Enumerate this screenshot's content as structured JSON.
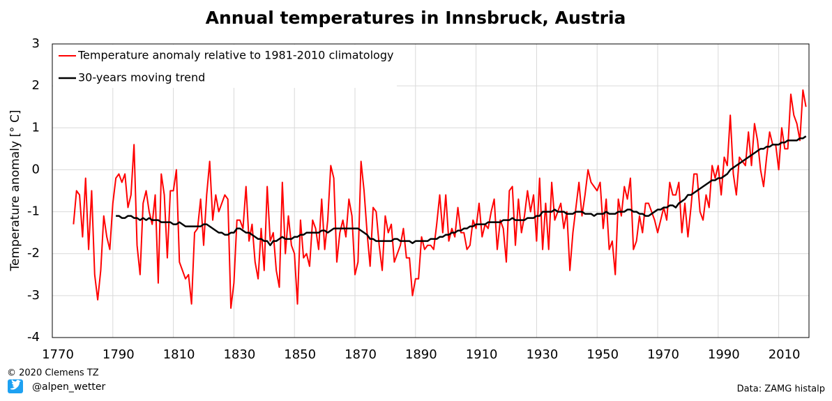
{
  "chart_data": {
    "type": "line",
    "title": "Annual temperatures in Innsbruck, Austria",
    "y_label": "Temperature anomaly [° C]",
    "xlim": [
      1770,
      2020
    ],
    "ylim": [
      -4,
      3
    ],
    "xticks": [
      1770,
      1790,
      1810,
      1830,
      1850,
      1870,
      1890,
      1910,
      1930,
      1950,
      1970,
      1990,
      2010
    ],
    "yticks": [
      -4,
      -3,
      -2,
      -1,
      0,
      1,
      2,
      3
    ],
    "grid": true,
    "legend": "upper-left",
    "x": [
      1777,
      1778,
      1779,
      1780,
      1781,
      1782,
      1783,
      1784,
      1785,
      1786,
      1787,
      1788,
      1789,
      1790,
      1791,
      1792,
      1793,
      1794,
      1795,
      1796,
      1797,
      1798,
      1799,
      1800,
      1801,
      1802,
      1803,
      1804,
      1805,
      1806,
      1807,
      1808,
      1809,
      1810,
      1811,
      1812,
      1813,
      1814,
      1815,
      1816,
      1817,
      1818,
      1819,
      1820,
      1821,
      1822,
      1823,
      1824,
      1825,
      1826,
      1827,
      1828,
      1829,
      1830,
      1831,
      1832,
      1833,
      1834,
      1835,
      1836,
      1837,
      1838,
      1839,
      1840,
      1841,
      1842,
      1843,
      1844,
      1845,
      1846,
      1847,
      1848,
      1849,
      1850,
      1851,
      1852,
      1853,
      1854,
      1855,
      1856,
      1857,
      1858,
      1859,
      1860,
      1861,
      1862,
      1863,
      1864,
      1865,
      1866,
      1867,
      1868,
      1869,
      1870,
      1871,
      1872,
      1873,
      1874,
      1875,
      1876,
      1877,
      1878,
      1879,
      1880,
      1881,
      1882,
      1883,
      1884,
      1885,
      1886,
      1887,
      1888,
      1889,
      1890,
      1891,
      1892,
      1893,
      1894,
      1895,
      1896,
      1897,
      1898,
      1899,
      1900,
      1901,
      1902,
      1903,
      1904,
      1905,
      1906,
      1907,
      1908,
      1909,
      1910,
      1911,
      1912,
      1913,
      1914,
      1915,
      1916,
      1917,
      1918,
      1919,
      1920,
      1921,
      1922,
      1923,
      1924,
      1925,
      1926,
      1927,
      1928,
      1929,
      1930,
      1931,
      1932,
      1933,
      1934,
      1935,
      1936,
      1937,
      1938,
      1939,
      1940,
      1941,
      1942,
      1943,
      1944,
      1945,
      1946,
      1947,
      1948,
      1949,
      1950,
      1951,
      1952,
      1953,
      1954,
      1955,
      1956,
      1957,
      1958,
      1959,
      1960,
      1961,
      1962,
      1963,
      1964,
      1965,
      1966,
      1967,
      1968,
      1969,
      1970,
      1971,
      1972,
      1973,
      1974,
      1975,
      1976,
      1977,
      1978,
      1979,
      1980,
      1981,
      1982,
      1983,
      1984,
      1985,
      1986,
      1987,
      1988,
      1989,
      1990,
      1991,
      1992,
      1993,
      1994,
      1995,
      1996,
      1997,
      1998,
      1999,
      2000,
      2001,
      2002,
      2003,
      2004,
      2005,
      2006,
      2007,
      2008,
      2009,
      2010,
      2011,
      2012,
      2013,
      2014,
      2015,
      2016,
      2017,
      2018,
      2019
    ],
    "series": [
      {
        "name": "Temperature anomaly relative to 1981-2010 climatology",
        "color": "#ff0000",
        "width": 2,
        "values": [
          -1.3,
          -0.5,
          -0.6,
          -1.6,
          -0.2,
          -1.9,
          -0.5,
          -2.5,
          -3.1,
          -2.4,
          -1.1,
          -1.6,
          -1.9,
          -0.8,
          -0.2,
          -0.1,
          -0.3,
          -0.1,
          -0.9,
          -0.6,
          0.6,
          -1.8,
          -2.5,
          -0.8,
          -0.5,
          -1.0,
          -1.3,
          -0.6,
          -2.7,
          -0.1,
          -0.6,
          -2.1,
          -0.5,
          -0.5,
          0.0,
          -2.2,
          -2.4,
          -2.6,
          -2.5,
          -3.2,
          -1.5,
          -1.4,
          -0.7,
          -1.8,
          -0.6,
          0.2,
          -1.2,
          -0.6,
          -1.0,
          -0.8,
          -0.6,
          -0.7,
          -3.3,
          -2.7,
          -1.2,
          -1.2,
          -1.4,
          -0.4,
          -1.7,
          -1.3,
          -2.2,
          -2.6,
          -1.4,
          -2.4,
          -0.4,
          -1.7,
          -1.5,
          -2.4,
          -2.8,
          -0.3,
          -2.0,
          -1.1,
          -1.8,
          -2.0,
          -3.2,
          -1.2,
          -2.1,
          -2.0,
          -2.3,
          -1.2,
          -1.4,
          -1.9,
          -0.7,
          -1.9,
          -1.2,
          0.1,
          -0.2,
          -2.2,
          -1.5,
          -1.2,
          -1.6,
          -0.7,
          -1.1,
          -2.5,
          -2.2,
          0.2,
          -0.5,
          -1.5,
          -2.3,
          -0.9,
          -1.0,
          -1.8,
          -2.4,
          -1.1,
          -1.5,
          -1.3,
          -2.2,
          -2.0,
          -1.8,
          -1.4,
          -2.1,
          -2.1,
          -3.0,
          -2.6,
          -2.6,
          -1.6,
          -1.9,
          -1.8,
          -1.8,
          -1.9,
          -1.3,
          -0.6,
          -1.5,
          -0.6,
          -1.7,
          -1.4,
          -1.6,
          -0.9,
          -1.5,
          -1.5,
          -1.9,
          -1.8,
          -1.2,
          -1.4,
          -0.8,
          -1.6,
          -1.3,
          -1.4,
          -1.0,
          -0.7,
          -1.9,
          -1.2,
          -1.4,
          -2.2,
          -0.5,
          -0.4,
          -1.8,
          -0.7,
          -1.5,
          -1.1,
          -0.5,
          -1.0,
          -0.6,
          -1.7,
          -0.2,
          -1.9,
          -0.8,
          -1.9,
          -0.3,
          -1.2,
          -1.0,
          -0.8,
          -1.4,
          -1.0,
          -2.4,
          -1.5,
          -0.9,
          -0.3,
          -1.1,
          -0.6,
          0.0,
          -0.3,
          -0.4,
          -0.5,
          -0.3,
          -1.4,
          -0.7,
          -1.9,
          -1.7,
          -2.5,
          -0.7,
          -1.1,
          -0.4,
          -0.7,
          -0.2,
          -1.9,
          -1.7,
          -1.1,
          -1.5,
          -0.8,
          -0.8,
          -1.0,
          -1.2,
          -1.5,
          -1.2,
          -0.9,
          -1.2,
          -0.3,
          -0.6,
          -0.6,
          -0.3,
          -1.5,
          -0.8,
          -1.6,
          -0.9,
          -0.1,
          -0.1,
          -1.0,
          -1.2,
          -0.6,
          -0.9,
          0.1,
          -0.2,
          0.1,
          -0.6,
          0.3,
          0.1,
          1.3,
          -0.1,
          -0.6,
          0.3,
          0.2,
          0.1,
          0.9,
          0.1,
          1.1,
          0.7,
          0.0,
          -0.4,
          0.3,
          0.9,
          0.6,
          0.6,
          0.0,
          1.0,
          0.5,
          0.5,
          1.8,
          1.3,
          1.1,
          0.7,
          1.9,
          1.5
        ]
      },
      {
        "name": "30-years moving trend",
        "color": "#000000",
        "width": 2.5,
        "values": [
          null,
          null,
          null,
          null,
          null,
          null,
          null,
          null,
          null,
          null,
          null,
          null,
          null,
          null,
          -1.1,
          -1.1,
          -1.15,
          -1.15,
          -1.1,
          -1.1,
          -1.15,
          -1.15,
          -1.2,
          -1.15,
          -1.2,
          -1.15,
          -1.2,
          -1.2,
          -1.2,
          -1.25,
          -1.25,
          -1.25,
          -1.25,
          -1.3,
          -1.3,
          -1.25,
          -1.3,
          -1.35,
          -1.35,
          -1.35,
          -1.35,
          -1.35,
          -1.35,
          -1.3,
          -1.3,
          -1.35,
          -1.4,
          -1.45,
          -1.5,
          -1.5,
          -1.55,
          -1.55,
          -1.5,
          -1.5,
          -1.4,
          -1.4,
          -1.45,
          -1.5,
          -1.5,
          -1.55,
          -1.6,
          -1.65,
          -1.65,
          -1.7,
          -1.7,
          -1.8,
          -1.7,
          -1.7,
          -1.65,
          -1.6,
          -1.65,
          -1.65,
          -1.65,
          -1.6,
          -1.6,
          -1.55,
          -1.55,
          -1.5,
          -1.5,
          -1.5,
          -1.5,
          -1.5,
          -1.45,
          -1.45,
          -1.5,
          -1.45,
          -1.4,
          -1.4,
          -1.4,
          -1.4,
          -1.4,
          -1.4,
          -1.4,
          -1.4,
          -1.4,
          -1.45,
          -1.5,
          -1.55,
          -1.65,
          -1.65,
          -1.7,
          -1.7,
          -1.7,
          -1.7,
          -1.7,
          -1.7,
          -1.65,
          -1.65,
          -1.7,
          -1.7,
          -1.7,
          -1.7,
          -1.75,
          -1.7,
          -1.7,
          -1.7,
          -1.7,
          -1.7,
          -1.65,
          -1.65,
          -1.65,
          -1.6,
          -1.6,
          -1.55,
          -1.55,
          -1.5,
          -1.5,
          -1.45,
          -1.45,
          -1.4,
          -1.4,
          -1.35,
          -1.35,
          -1.3,
          -1.3,
          -1.3,
          -1.3,
          -1.25,
          -1.25,
          -1.25,
          -1.25,
          -1.25,
          -1.2,
          -1.2,
          -1.2,
          -1.15,
          -1.2,
          -1.2,
          -1.2,
          -1.2,
          -1.15,
          -1.15,
          -1.15,
          -1.1,
          -1.1,
          -1.0,
          -1.0,
          -1.0,
          -1.0,
          -0.95,
          -1.0,
          -1.0,
          -1.0,
          -1.05,
          -1.05,
          -1.05,
          -1.0,
          -1.0,
          -1.0,
          -1.05,
          -1.05,
          -1.05,
          -1.1,
          -1.05,
          -1.05,
          -1.05,
          -1.0,
          -1.05,
          -1.05,
          -1.05,
          -1.0,
          -1.0,
          -1.0,
          -0.95,
          -0.95,
          -1.0,
          -1.0,
          -1.05,
          -1.05,
          -1.1,
          -1.1,
          -1.05,
          -1.0,
          -0.95,
          -0.95,
          -0.9,
          -0.9,
          -0.85,
          -0.85,
          -0.9,
          -0.8,
          -0.75,
          -0.7,
          -0.6,
          -0.6,
          -0.55,
          -0.5,
          -0.45,
          -0.4,
          -0.35,
          -0.3,
          -0.25,
          -0.25,
          -0.2,
          -0.2,
          -0.15,
          -0.1,
          0.0,
          0.05,
          0.1,
          0.15,
          0.2,
          0.25,
          0.3,
          0.35,
          0.4,
          0.45,
          0.5,
          0.5,
          0.55,
          0.55,
          0.6,
          0.6,
          0.6,
          0.65,
          0.65,
          0.7,
          0.7,
          0.7,
          0.7,
          0.75,
          0.75,
          0.8
        ]
      }
    ]
  },
  "footer": {
    "credit": "© 2020 Clemens TZ",
    "handle": "@alpen_wetter",
    "source": "Data: ZAMG histalp"
  }
}
